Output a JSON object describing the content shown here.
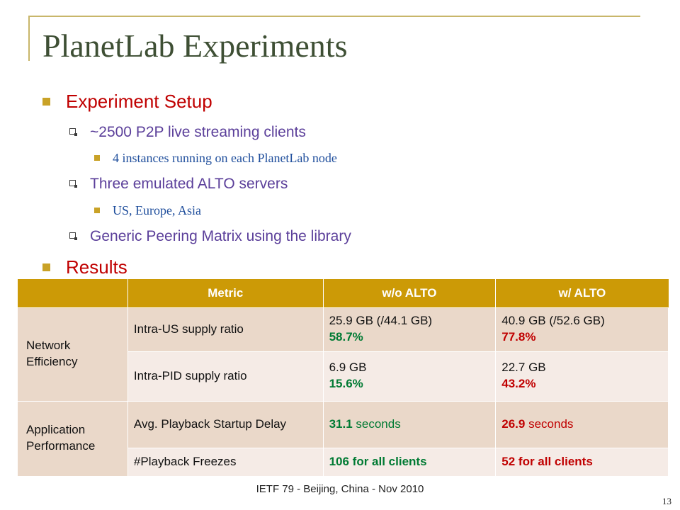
{
  "slide": {
    "title": "PlanetLab Experiments",
    "bullets": {
      "setup": "Experiment Setup",
      "clients": "~2500 P2P live streaming clients",
      "instances": "4 instances running on each PlanetLab node",
      "servers": "Three emulated ALTO servers",
      "regions": "US, Europe, Asia",
      "matrix": "Generic Peering Matrix using the library",
      "results": "Results"
    },
    "table": {
      "headers": [
        "",
        "Metric",
        "w/o ALTO",
        "w/ ALTO"
      ],
      "groups": [
        "Network Efficiency",
        "Application Performance"
      ],
      "rows": [
        {
          "metric": "Intra-US supply ratio",
          "without": "25.9 GB (/44.1 GB)",
          "without_pct": "58.7%",
          "with": "40.9 GB (/52.6 GB)",
          "with_pct": "77.8%"
        },
        {
          "metric": "Intra-PID supply ratio",
          "without": "6.9 GB",
          "without_pct": "15.6%",
          "with": "22.7 GB",
          "with_pct": "43.2%"
        },
        {
          "metric": "Avg. Playback Startup Delay",
          "without_num": "31.1",
          "without_unit": " seconds",
          "with_num": "26.9",
          "with_unit": " seconds"
        },
        {
          "metric": "#Playback Freezes",
          "without_num": "106",
          "without_unit": " for all clients",
          "with_num": "52",
          "with_unit": " for all clients"
        }
      ]
    },
    "footer": "IETF 79 - Beijing, China - Nov 2010",
    "page_number": "13",
    "colors": {
      "title": "#3e4f34",
      "accent": "#c9a227",
      "header": "#cc9a06",
      "red": "#c00000",
      "green": "#007a33"
    }
  }
}
